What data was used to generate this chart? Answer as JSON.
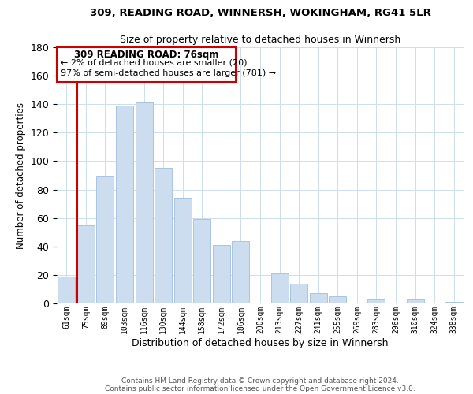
{
  "title1": "309, READING ROAD, WINNERSH, WOKINGHAM, RG41 5LR",
  "title2": "Size of property relative to detached houses in Winnersh",
  "xlabel": "Distribution of detached houses by size in Winnersh",
  "ylabel": "Number of detached properties",
  "footer1": "Contains HM Land Registry data © Crown copyright and database right 2024.",
  "footer2": "Contains public sector information licensed under the Open Government Licence v3.0.",
  "annotation_title": "309 READING ROAD: 76sqm",
  "annotation_line1": "← 2% of detached houses are smaller (20)",
  "annotation_line2": "97% of semi-detached houses are larger (781) →",
  "bar_labels": [
    "61sqm",
    "75sqm",
    "89sqm",
    "103sqm",
    "116sqm",
    "130sqm",
    "144sqm",
    "158sqm",
    "172sqm",
    "186sqm",
    "200sqm",
    "213sqm",
    "227sqm",
    "241sqm",
    "255sqm",
    "269sqm",
    "283sqm",
    "296sqm",
    "310sqm",
    "324sqm",
    "338sqm"
  ],
  "bar_values": [
    19,
    55,
    90,
    139,
    141,
    95,
    74,
    59,
    41,
    44,
    0,
    21,
    14,
    7,
    5,
    0,
    3,
    0,
    3,
    0,
    1
  ],
  "bar_color": "#ccddf0",
  "bar_edge_color": "#a8c4e0",
  "highlight_color": "#cc0000",
  "ylim": [
    0,
    180
  ],
  "yticks": [
    0,
    20,
    40,
    60,
    80,
    100,
    120,
    140,
    160,
    180
  ],
  "background_color": "#ffffff",
  "grid_color": "#ccddef"
}
